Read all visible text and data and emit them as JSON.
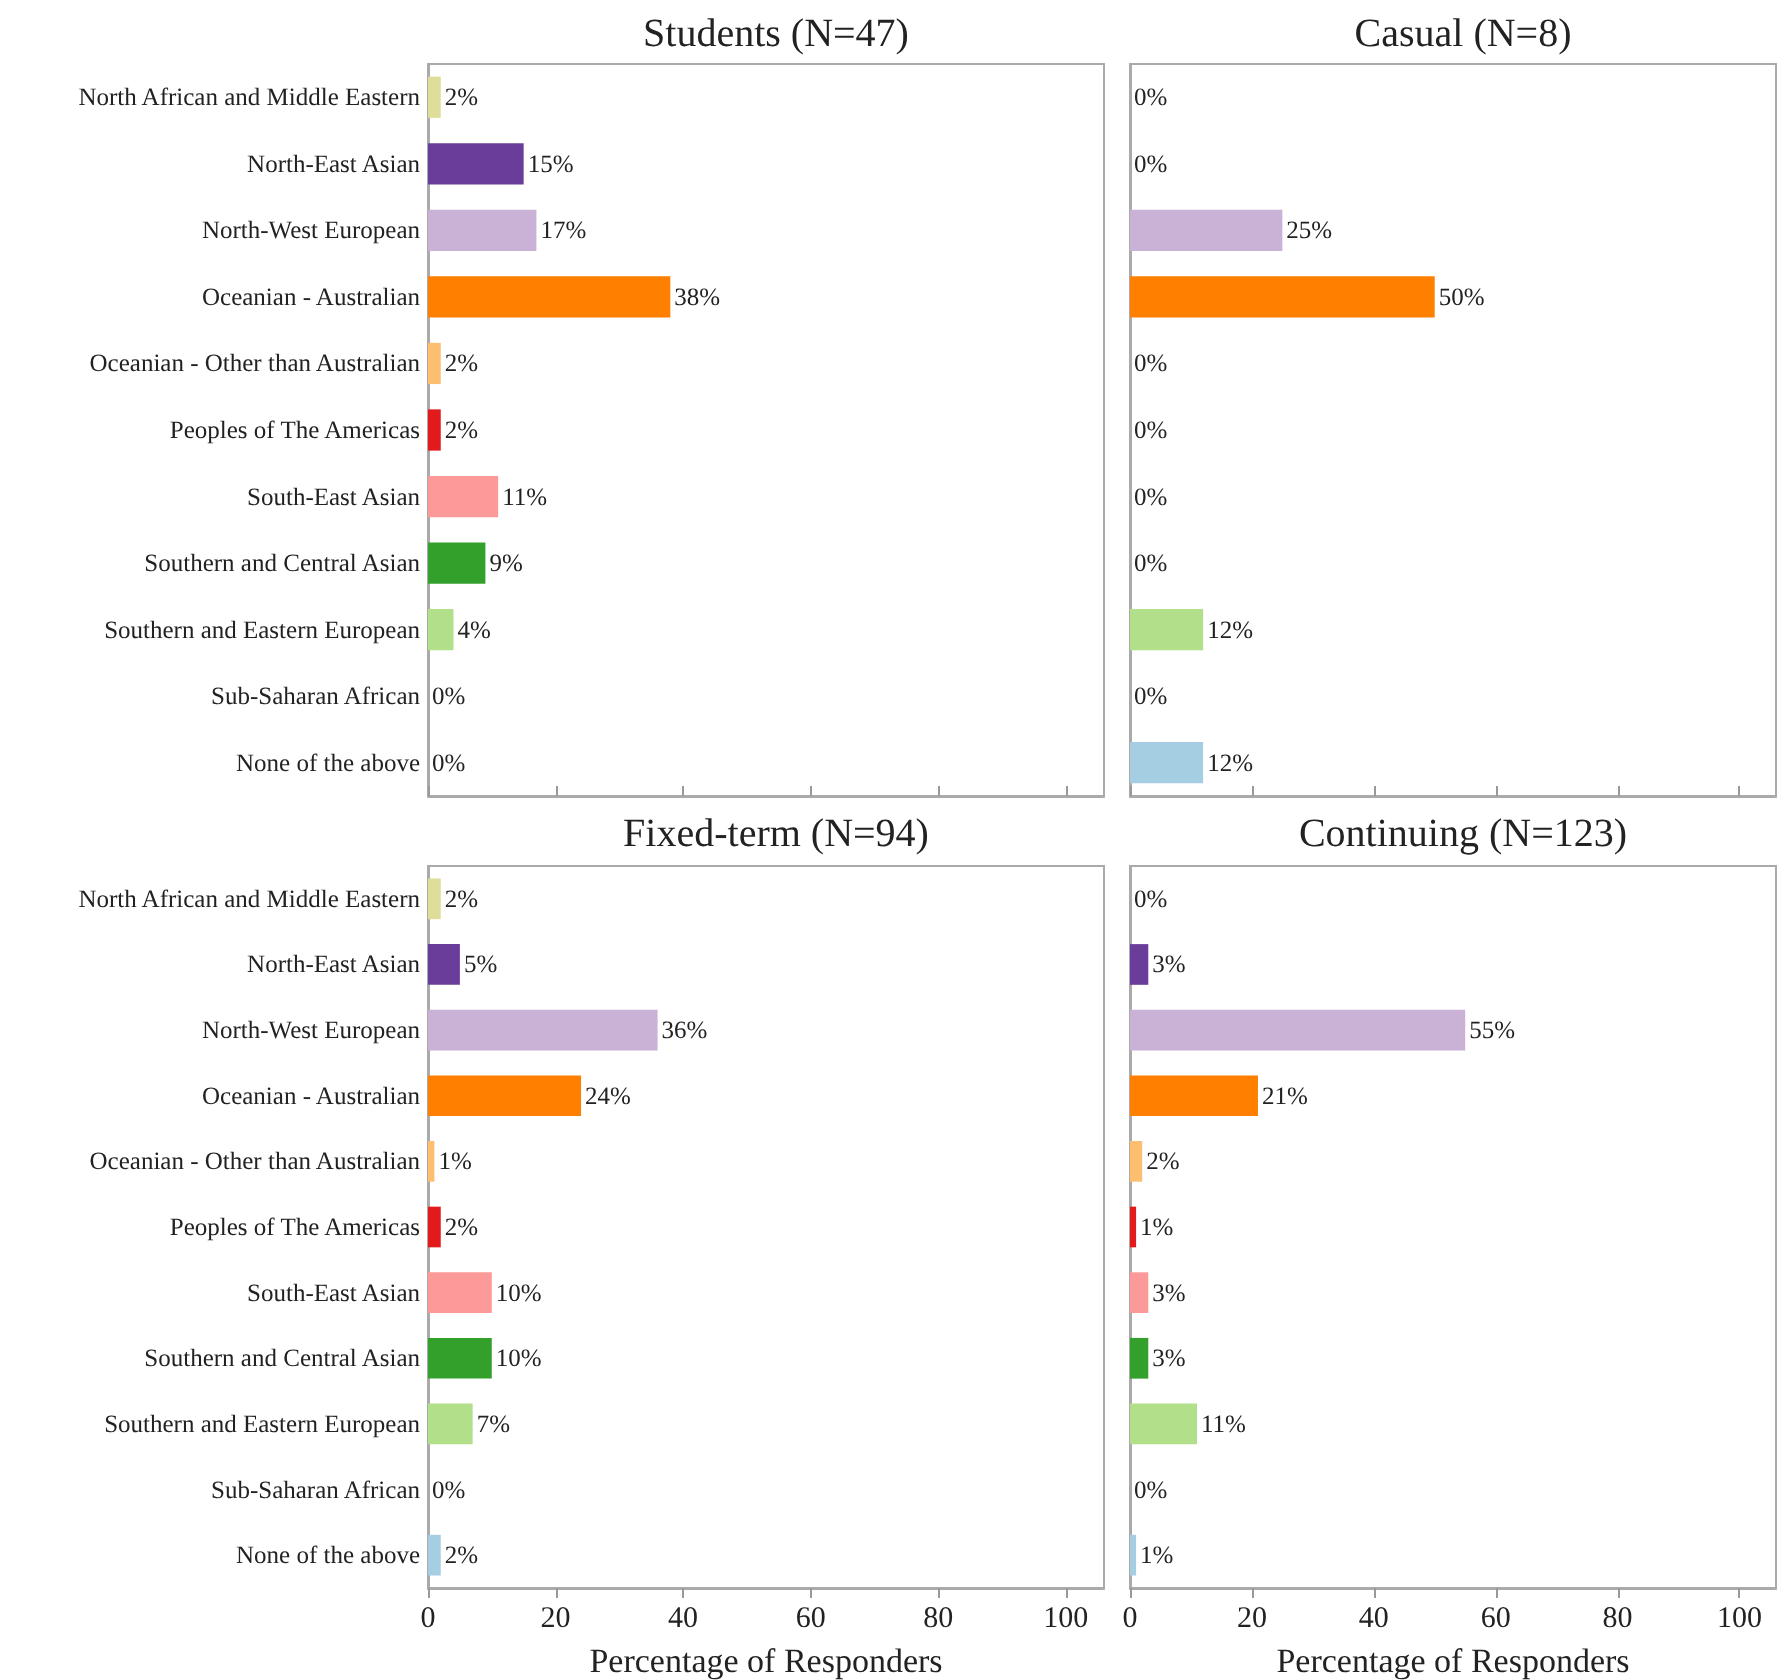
{
  "chart_data": [
    {
      "type": "bar",
      "orientation": "horizontal",
      "title": "Students (N=47)",
      "tick_labels": "y",
      "categories": [
        "North African and Middle Eastern",
        "North-East Asian",
        "North-West European",
        "Oceanian - Australian",
        "Oceanian - Other than Australian",
        "Peoples of The Americas",
        "South-East Asian",
        "Southern and Central Asian",
        "Southern and Eastern European",
        "Sub-Saharan African",
        "None of the above"
      ],
      "values": [
        2,
        15,
        17,
        38,
        2,
        2,
        11,
        9,
        4,
        0,
        0
      ],
      "value_labels": [
        "2%",
        "15%",
        "17%",
        "38%",
        "2%",
        "2%",
        "11%",
        "9%",
        "4%",
        "0%",
        "0%"
      ],
      "colors": [
        "#dede9a",
        "#6a3d9a",
        "#cab2d6",
        "#ff7f00",
        "#fdbf6f",
        "#e31a1c",
        "#fb9a99",
        "#33a02c",
        "#b2df8a",
        "#1f78b4",
        "#a6cee3"
      ],
      "xlim": [
        0,
        106
      ],
      "xticks": [
        0,
        20,
        40,
        60,
        80,
        100
      ]
    },
    {
      "type": "bar",
      "orientation": "horizontal",
      "title": "Casual (N=8)",
      "tick_labels": false,
      "categories": [
        null,
        null,
        null,
        null,
        null,
        null,
        null,
        null,
        null,
        null,
        null
      ],
      "values": [
        0,
        0,
        25,
        50,
        0,
        0,
        0,
        0,
        12,
        0,
        12
      ],
      "value_labels": [
        "0%",
        "0%",
        "25%",
        "50%",
        "0%",
        "0%",
        "0%",
        "0%",
        "12%",
        "0%",
        "12%"
      ],
      "colors": [
        "#dede9a",
        "#6a3d9a",
        "#cab2d6",
        "#ff7f00",
        "#fdbf6f",
        "#e31a1c",
        "#fb9a99",
        "#33a02c",
        "#b2df8a",
        "#1f78b4",
        "#a6cee3"
      ],
      "xlim": [
        0,
        106
      ],
      "xticks": [
        0,
        20,
        40,
        60,
        80,
        100
      ]
    },
    {
      "type": "bar",
      "orientation": "horizontal",
      "title": "Fixed-term (N=94)",
      "xlabel": "Percentage of Responders",
      "categories": [
        "North African and Middle Eastern",
        "North-East Asian",
        "North-West European",
        "Oceanian - Australian",
        "Oceanian - Other than Australian",
        "Peoples of The Americas",
        "South-East Asian",
        "Southern and Central Asian",
        "Southern and Eastern European",
        "Sub-Saharan African",
        "None of the above"
      ],
      "values": [
        2,
        5,
        36,
        24,
        1,
        2,
        10,
        10,
        7,
        0,
        2
      ],
      "value_labels": [
        "2%",
        "5%",
        "36%",
        "24%",
        "1%",
        "2%",
        "10%",
        "10%",
        "7%",
        "0%",
        "2%"
      ],
      "colors": [
        "#dede9a",
        "#6a3d9a",
        "#cab2d6",
        "#ff7f00",
        "#fdbf6f",
        "#e31a1c",
        "#fb9a99",
        "#33a02c",
        "#b2df8a",
        "#1f78b4",
        "#a6cee3"
      ],
      "xlim": [
        0,
        106
      ],
      "xticks": [
        0,
        20,
        40,
        60,
        80,
        100
      ]
    },
    {
      "type": "bar",
      "orientation": "horizontal",
      "title": "Continuing (N=123)",
      "xlabel": "Percentage of Responders",
      "tick_labels": "x",
      "categories": [
        null,
        null,
        null,
        null,
        null,
        null,
        null,
        null,
        null,
        null,
        null
      ],
      "values": [
        0,
        3,
        55,
        21,
        2,
        1,
        3,
        3,
        11,
        0,
        1
      ],
      "value_labels": [
        "0%",
        "3%",
        "55%",
        "21%",
        "2%",
        "1%",
        "3%",
        "3%",
        "11%",
        "0%",
        "1%"
      ],
      "colors": [
        "#dede9a",
        "#6a3d9a",
        "#cab2d6",
        "#ff7f00",
        "#fdbf6f",
        "#e31a1c",
        "#fb9a99",
        "#33a02c",
        "#b2df8a",
        "#1f78b4",
        "#a6cee3"
      ],
      "xlim": [
        0,
        106
      ],
      "xticks": [
        0,
        20,
        40,
        60,
        80,
        100
      ]
    }
  ]
}
